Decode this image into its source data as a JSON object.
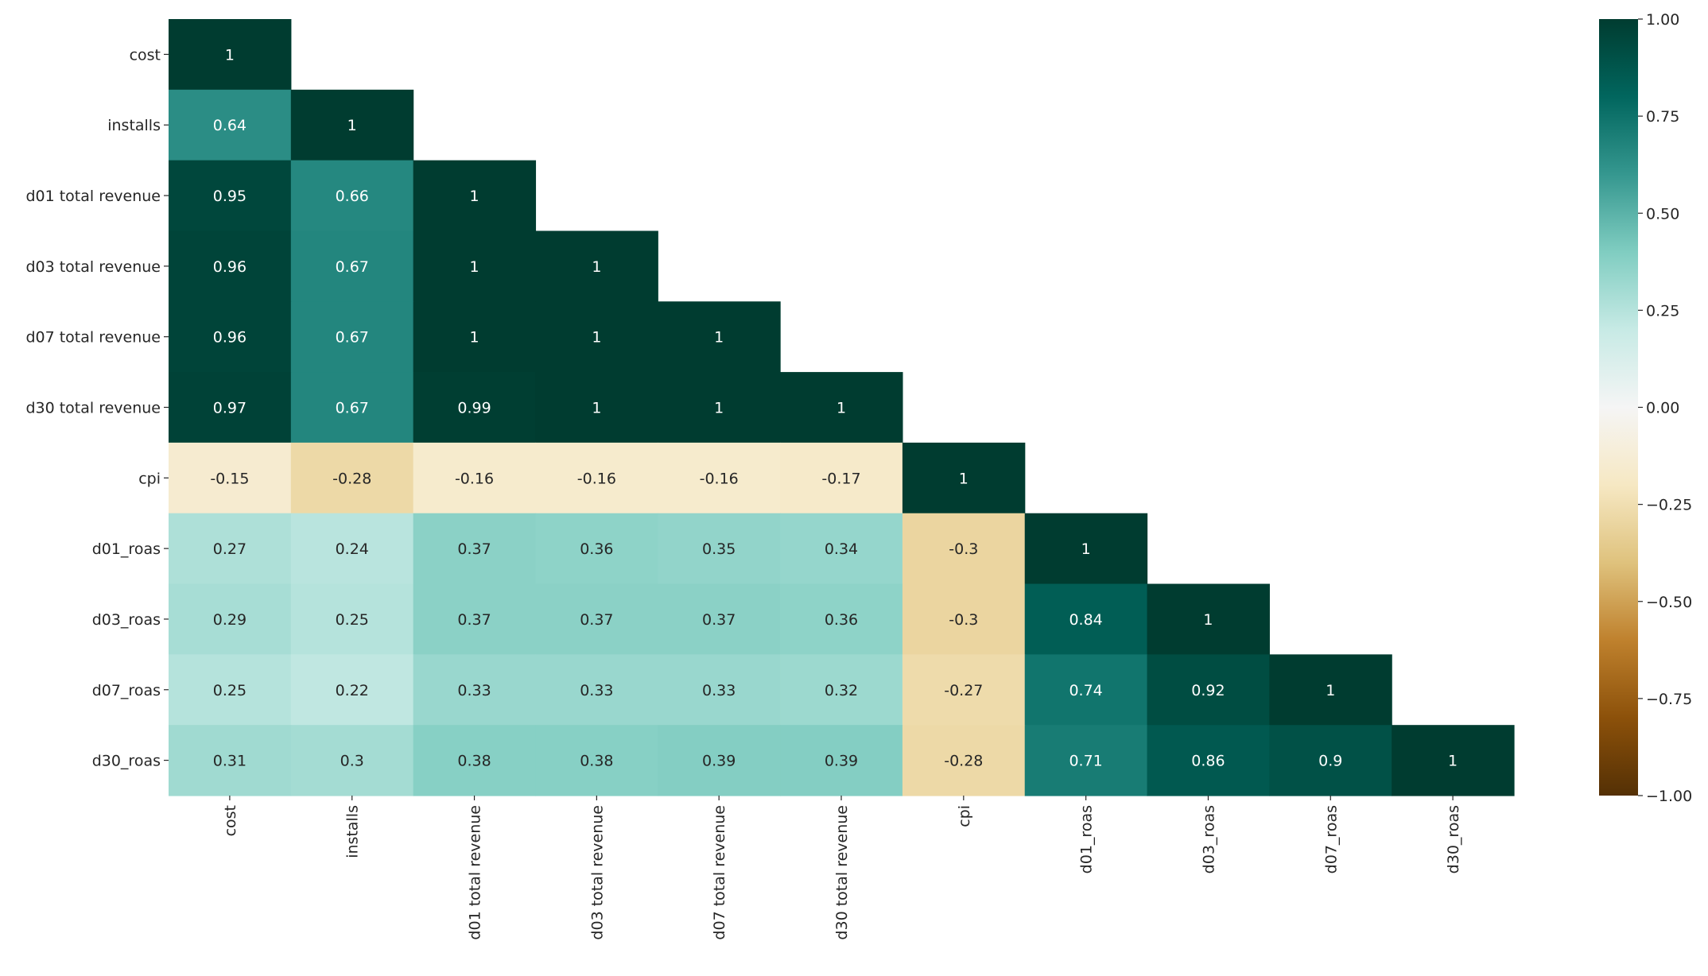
{
  "chart_data": {
    "type": "heatmap",
    "title": "",
    "xlabel": "",
    "ylabel": "",
    "mask": "upper-triangle",
    "colormap": "BrBG",
    "vmin": -1.0,
    "vmax": 1.0,
    "annotate": true,
    "labels": [
      "cost",
      "installs",
      "d01 total revenue",
      "d03 total revenue",
      "d07 total revenue",
      "d30 total revenue",
      "cpi",
      "d01_roas",
      "d03_roas",
      "d07_roas",
      "d30_roas"
    ],
    "matrix": [
      [
        1
      ],
      [
        0.64,
        1
      ],
      [
        0.95,
        0.66,
        1
      ],
      [
        0.96,
        0.67,
        1,
        1
      ],
      [
        0.96,
        0.67,
        1,
        1,
        1
      ],
      [
        0.97,
        0.67,
        0.99,
        1,
        1,
        1
      ],
      [
        -0.15,
        -0.28,
        -0.16,
        -0.16,
        -0.16,
        -0.17,
        1
      ],
      [
        0.27,
        0.24,
        0.37,
        0.36,
        0.35,
        0.34,
        -0.3,
        1
      ],
      [
        0.29,
        0.25,
        0.37,
        0.37,
        0.37,
        0.36,
        -0.3,
        0.84,
        1
      ],
      [
        0.25,
        0.22,
        0.33,
        0.33,
        0.33,
        0.32,
        -0.27,
        0.74,
        0.92,
        1
      ],
      [
        0.31,
        0.3,
        0.38,
        0.38,
        0.39,
        0.39,
        -0.28,
        0.71,
        0.86,
        0.9,
        1
      ]
    ],
    "colorbar": {
      "ticks": [
        1.0,
        0.75,
        0.5,
        0.25,
        0.0,
        -0.25,
        -0.5,
        -0.75,
        -1.0
      ],
      "tick_labels": [
        "1.00",
        "0.75",
        "0.50",
        "0.25",
        "0.00",
        "−0.25",
        "−0.50",
        "−0.75",
        "−1.00"
      ],
      "placement": "right"
    },
    "colormap_stops": [
      "#543005",
      "#8c510a",
      "#bf812d",
      "#dfc27d",
      "#f6e8c3",
      "#f5f5f5",
      "#c7eae5",
      "#80cdc1",
      "#35978f",
      "#01665e",
      "#003c30"
    ]
  }
}
